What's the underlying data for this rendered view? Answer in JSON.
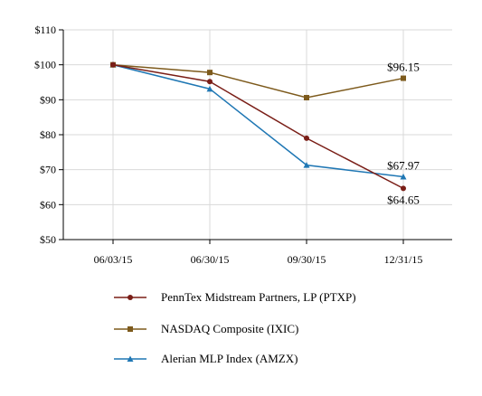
{
  "chart_data": {
    "type": "line",
    "title": "",
    "xlabel": "",
    "ylabel": "",
    "categories": [
      "06/03/15",
      "06/30/15",
      "09/30/15",
      "12/31/15"
    ],
    "ylim": [
      50,
      110
    ],
    "yticks": [
      50,
      60,
      70,
      80,
      90,
      100,
      110
    ],
    "ytick_labels": [
      "$50",
      "$60",
      "$70",
      "$80",
      "$90",
      "$100",
      "$110"
    ],
    "grid": true,
    "legend_position": "bottom",
    "series": [
      {
        "name": "PennTex Midstream Partners, LP (PTXP)",
        "values": [
          100,
          95.2,
          79.0,
          64.65
        ],
        "color": "#7a1e17",
        "marker": "circle"
      },
      {
        "name": "NASDAQ Composite (IXIC)",
        "values": [
          100,
          97.8,
          90.6,
          96.15
        ],
        "color": "#7d5a1c",
        "marker": "square"
      },
      {
        "name": "Alerian MLP Index (AMZX)",
        "values": [
          100,
          93.1,
          71.3,
          67.97
        ],
        "color": "#1f77b4",
        "marker": "triangle"
      }
    ],
    "annotations": [
      {
        "text": "$96.15",
        "series": 1,
        "point": 3,
        "position": "above"
      },
      {
        "text": "$67.97",
        "series": 2,
        "point": 3,
        "position": "above"
      },
      {
        "text": "$64.65",
        "series": 0,
        "point": 3,
        "position": "below"
      }
    ]
  }
}
